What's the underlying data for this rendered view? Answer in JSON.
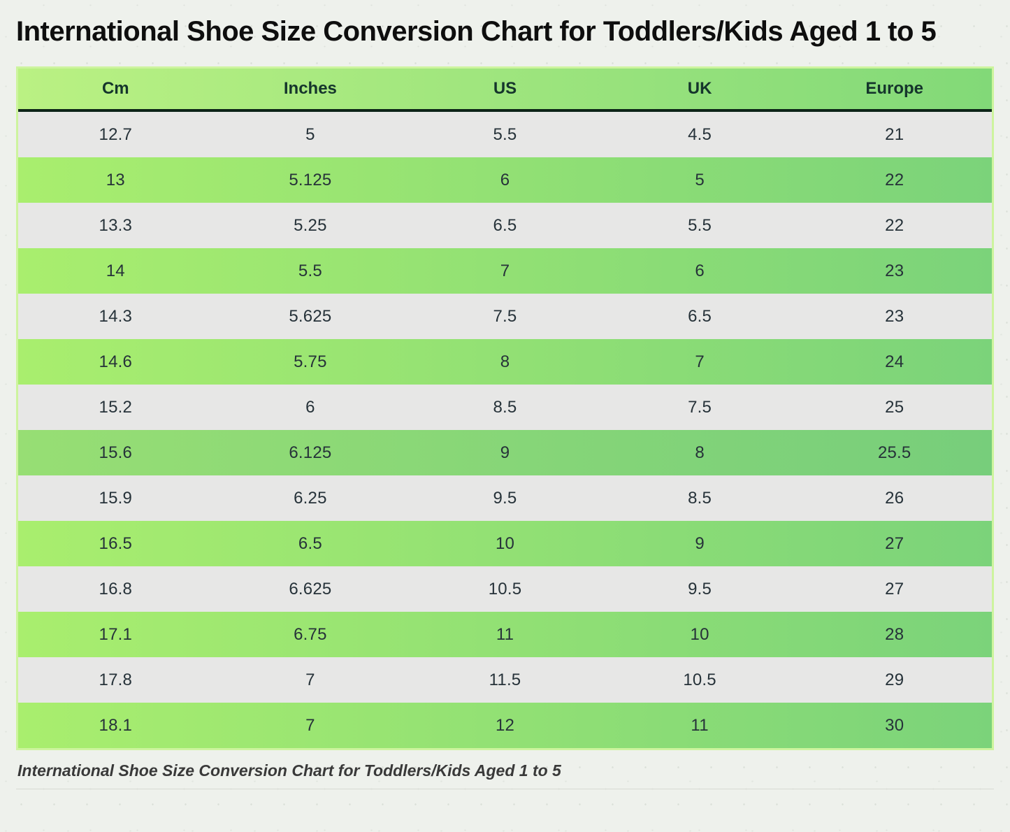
{
  "page_title": "International Shoe Size Conversion Chart for Toddlers/Kids Aged 1 to 5",
  "caption": "International Shoe Size Conversion Chart for Toddlers/Kids Aged 1 to 5",
  "chart_data": {
    "type": "table",
    "title": "International Shoe Size Conversion Chart for Toddlers/Kids Aged 1 to 5",
    "columns": [
      "Cm",
      "Inches",
      "US",
      "UK",
      "Europe"
    ],
    "rows": [
      [
        "12.7",
        "5",
        "5.5",
        "4.5",
        "21"
      ],
      [
        "13",
        "5.125",
        "6",
        "5",
        "22"
      ],
      [
        "13.3",
        "5.25",
        "6.5",
        "5.5",
        "22"
      ],
      [
        "14",
        "5.5",
        "7",
        "6",
        "23"
      ],
      [
        "14.3",
        "5.625",
        "7.5",
        "6.5",
        "23"
      ],
      [
        "14.6",
        "5.75",
        "8",
        "7",
        "24"
      ],
      [
        "15.2",
        "6",
        "8.5",
        "7.5",
        "25"
      ],
      [
        "15.6",
        "6.125",
        "9",
        "8",
        "25.5"
      ],
      [
        "15.9",
        "6.25",
        "9.5",
        "8.5",
        "26"
      ],
      [
        "16.5",
        "6.5",
        "10",
        "9",
        "27"
      ],
      [
        "16.8",
        "6.625",
        "10.5",
        "9.5",
        "27"
      ],
      [
        "17.1",
        "6.75",
        "11",
        "10",
        "28"
      ],
      [
        "17.8",
        "7",
        "11.5",
        "10.5",
        "29"
      ],
      [
        "18.1",
        "7",
        "12",
        "11",
        "30"
      ]
    ],
    "highlight_row_index": 7,
    "layout_hints": {
      "striping": "first data row gray, alternating green gradient rows",
      "legend": "none",
      "grid": "off"
    }
  },
  "colors": {
    "background": "#eef1ec",
    "title_text": "#0e0e0e",
    "header_gradient_left": "#baf183",
    "header_gradient_right": "#82d978",
    "header_text": "#15352c",
    "header_underline": "#0d2418",
    "row_gray": "#e7e7e6",
    "green_row_left": "#a9ee6e",
    "green_row_right": "#7bd37a",
    "highlight_row_left": "#97de74",
    "highlight_row_right": "#77ce7b",
    "cell_text": "#263239",
    "table_border": "#cdf49e",
    "caption_text": "#393939",
    "rule": "#d7dbd3"
  }
}
